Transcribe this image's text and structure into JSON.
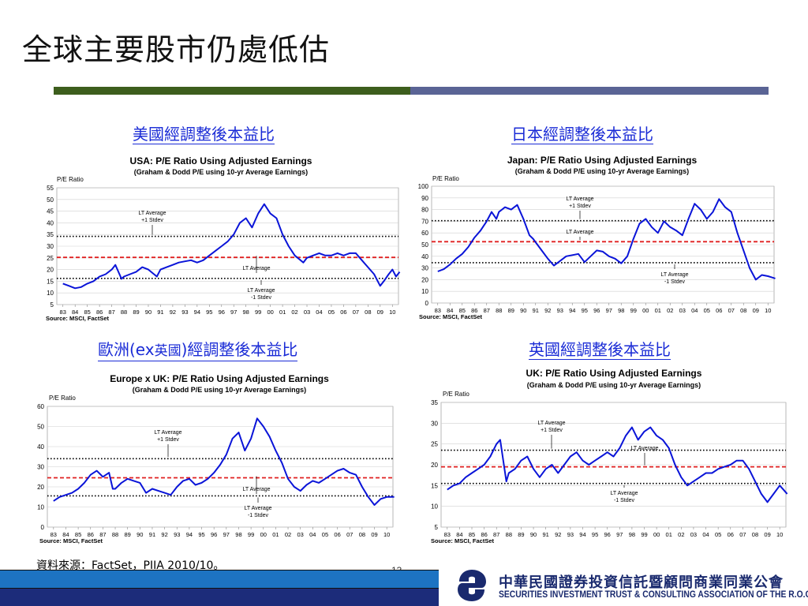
{
  "slide": {
    "title": "全球主要股市仍處低估",
    "source_note": "資料來源：FactSet，PIIA 2010/10。",
    "page_number": "13"
  },
  "footer": {
    "org_cn": "中華民國證券投資信託暨顧問商業同業公會",
    "org_en": "SECURITIES INVESTMENT TRUST & CONSULTING ASSOCIATION OF THE R.O.C.",
    "colors": {
      "bar_top": "#1d73c2",
      "bar_bottom": "#1c2c7a",
      "logo": "#1a2a6e"
    }
  },
  "colors": {
    "series": "#0a14d8",
    "average": "#e02020",
    "stdev": "#000000",
    "title_bar_green": "#3d5e1d",
    "title_bar_blue": "#5a6495",
    "section_title": "#1a2bd6"
  },
  "sections": {
    "usa": "美國經調整後本益比",
    "japan": "日本經調整後本益比",
    "europe_prefix": "歐洲",
    "europe_ex": "(ex",
    "europe_mid": "英國",
    "europe_suffix": ")經調整後本益比",
    "uk": "英國經調整後本益比"
  },
  "chart_data": [
    {
      "id": "usa",
      "type": "line",
      "title": "USA: P/E Ratio Using Adjusted Earnings",
      "subtitle": "(Graham & Dodd P/E using 10-yr Average Earnings)",
      "ylabel": "P/E Ratio",
      "ylim": [
        5,
        55
      ],
      "yticks": [
        5,
        10,
        15,
        20,
        25,
        30,
        35,
        40,
        45,
        50,
        55
      ],
      "xticks": [
        "83",
        "84",
        "85",
        "86",
        "87",
        "88",
        "89",
        "90",
        "91",
        "92",
        "93",
        "94",
        "95",
        "96",
        "97",
        "98",
        "99",
        "00",
        "01",
        "02",
        "03",
        "04",
        "05",
        "06",
        "07",
        "08",
        "09",
        "10"
      ],
      "source": "Source: MSCI, FactSet",
      "lt_average": 25.2,
      "plus_1_stdev": 34.2,
      "minus_1_stdev": 16.2,
      "annotations": {
        "plus": [
          "LT Average",
          "+1 Stdev"
        ],
        "avg": [
          "LT Average"
        ],
        "minus": [
          "LT Average",
          "-1 Stdev"
        ]
      },
      "points": [
        [
          1983,
          14
        ],
        [
          1983.5,
          13
        ],
        [
          1984,
          12
        ],
        [
          1984.5,
          12.5
        ],
        [
          1985,
          14
        ],
        [
          1985.5,
          15
        ],
        [
          1986,
          17
        ],
        [
          1986.5,
          18
        ],
        [
          1987,
          20
        ],
        [
          1987.3,
          22
        ],
        [
          1987.8,
          16
        ],
        [
          1988,
          17
        ],
        [
          1988.5,
          18
        ],
        [
          1989,
          19
        ],
        [
          1989.5,
          21
        ],
        [
          1990,
          20
        ],
        [
          1990.7,
          17
        ],
        [
          1991,
          20
        ],
        [
          1991.5,
          21
        ],
        [
          1992,
          22
        ],
        [
          1992.5,
          23
        ],
        [
          1993,
          23.5
        ],
        [
          1993.5,
          24
        ],
        [
          1994,
          23
        ],
        [
          1994.5,
          24
        ],
        [
          1995,
          26
        ],
        [
          1995.5,
          28
        ],
        [
          1996,
          30
        ],
        [
          1996.5,
          32
        ],
        [
          1997,
          35
        ],
        [
          1997.5,
          40
        ],
        [
          1998,
          42
        ],
        [
          1998.5,
          38
        ],
        [
          1999,
          44
        ],
        [
          1999.5,
          48
        ],
        [
          2000,
          44
        ],
        [
          2000.5,
          42
        ],
        [
          2001,
          35
        ],
        [
          2001.5,
          30
        ],
        [
          2002,
          26
        ],
        [
          2002.7,
          23
        ],
        [
          2003,
          25
        ],
        [
          2003.5,
          26
        ],
        [
          2004,
          27
        ],
        [
          2004.5,
          26
        ],
        [
          2005,
          26
        ],
        [
          2005.5,
          27
        ],
        [
          2006,
          26
        ],
        [
          2006.5,
          27
        ],
        [
          2007,
          27
        ],
        [
          2007.5,
          24
        ],
        [
          2008,
          21
        ],
        [
          2008.5,
          18
        ],
        [
          2009,
          13
        ],
        [
          2009.3,
          15
        ],
        [
          2009.7,
          18
        ],
        [
          2010,
          20
        ],
        [
          2010.3,
          17
        ],
        [
          2010.6,
          19
        ]
      ]
    },
    {
      "id": "japan",
      "type": "line",
      "title": "Japan: P/E Ratio Using Adjusted Earnings",
      "subtitle": "(Graham & Dodd P/E using 10-yr Average Earnings)",
      "ylabel": "P/E Ratio",
      "ylim": [
        0,
        100
      ],
      "yticks": [
        0,
        10,
        20,
        30,
        40,
        50,
        60,
        70,
        80,
        90,
        100
      ],
      "xticks": [
        "83",
        "84",
        "85",
        "86",
        "87",
        "88",
        "89",
        "90",
        "91",
        "92",
        "93",
        "94",
        "95",
        "96",
        "97",
        "98",
        "99",
        "00",
        "01",
        "02",
        "03",
        "04",
        "05",
        "06",
        "07",
        "08",
        "09",
        "10"
      ],
      "source": "Source: MSCI, FactSet",
      "lt_average": 52.5,
      "plus_1_stdev": 70.5,
      "minus_1_stdev": 34.5,
      "annotations": {
        "plus": [
          "LT Average",
          "+1 Stdev"
        ],
        "avg": [
          "LT Average"
        ],
        "minus": [
          "LT Average",
          "-1 Stdev"
        ]
      },
      "points": [
        [
          1983,
          27
        ],
        [
          1983.5,
          29
        ],
        [
          1984,
          33
        ],
        [
          1984.5,
          38
        ],
        [
          1985,
          42
        ],
        [
          1985.5,
          48
        ],
        [
          1986,
          56
        ],
        [
          1986.5,
          62
        ],
        [
          1987,
          70
        ],
        [
          1987.4,
          78
        ],
        [
          1987.8,
          72
        ],
        [
          1988,
          78
        ],
        [
          1988.5,
          82
        ],
        [
          1989,
          80
        ],
        [
          1989.5,
          84
        ],
        [
          1990,
          72
        ],
        [
          1990.5,
          58
        ],
        [
          1990.8,
          55
        ],
        [
          1991,
          52
        ],
        [
          1991.5,
          45
        ],
        [
          1992,
          38
        ],
        [
          1992.5,
          32
        ],
        [
          1993,
          36
        ],
        [
          1993.5,
          40
        ],
        [
          1994,
          41
        ],
        [
          1994.5,
          42
        ],
        [
          1995,
          35
        ],
        [
          1995.5,
          40
        ],
        [
          1996,
          45
        ],
        [
          1996.5,
          44
        ],
        [
          1997,
          40
        ],
        [
          1997.5,
          38
        ],
        [
          1998,
          34
        ],
        [
          1998.5,
          40
        ],
        [
          1999,
          55
        ],
        [
          1999.5,
          68
        ],
        [
          2000,
          72
        ],
        [
          2000.5,
          65
        ],
        [
          2001,
          60
        ],
        [
          2001.5,
          70
        ],
        [
          2002,
          65
        ],
        [
          2002.5,
          62
        ],
        [
          2003,
          58
        ],
        [
          2003.5,
          72
        ],
        [
          2004,
          85
        ],
        [
          2004.5,
          80
        ],
        [
          2005,
          72
        ],
        [
          2005.5,
          78
        ],
        [
          2006,
          89
        ],
        [
          2006.5,
          82
        ],
        [
          2007,
          78
        ],
        [
          2007.5,
          60
        ],
        [
          2008,
          45
        ],
        [
          2008.5,
          30
        ],
        [
          2009,
          20
        ],
        [
          2009.5,
          24
        ],
        [
          2010,
          23
        ],
        [
          2010.3,
          22
        ],
        [
          2010.6,
          21
        ]
      ]
    },
    {
      "id": "europe",
      "type": "line",
      "title": "Europe x UK: P/E Ratio Using Adjusted Earnings",
      "subtitle": "(Graham & Dodd P/E using 10-yr Average Earnings)",
      "ylabel": "P/E Ratio",
      "ylim": [
        0,
        60
      ],
      "yticks": [
        0,
        10,
        20,
        30,
        40,
        50,
        60
      ],
      "xticks": [
        "83",
        "84",
        "85",
        "86",
        "87",
        "88",
        "89",
        "90",
        "91",
        "92",
        "93",
        "94",
        "95",
        "96",
        "97",
        "98",
        "99",
        "00",
        "01",
        "02",
        "03",
        "04",
        "05",
        "06",
        "07",
        "08",
        "09",
        "10"
      ],
      "source": "Source: MSCI, FactSet",
      "lt_average": 24.5,
      "plus_1_stdev": 34,
      "minus_1_stdev": 15.5,
      "annotations": {
        "plus": [
          "LT Average",
          "+1 Stdev"
        ],
        "avg": [
          "LT Average"
        ],
        "minus": [
          "LT Average",
          "-1 Stdev"
        ]
      },
      "points": [
        [
          1983,
          13
        ],
        [
          1983.5,
          15
        ],
        [
          1984,
          16
        ],
        [
          1984.5,
          17
        ],
        [
          1985,
          19
        ],
        [
          1985.5,
          22
        ],
        [
          1986,
          26
        ],
        [
          1986.5,
          28
        ],
        [
          1987,
          25
        ],
        [
          1987.5,
          27
        ],
        [
          1987.8,
          19
        ],
        [
          1988,
          19
        ],
        [
          1988.5,
          22
        ],
        [
          1989,
          24
        ],
        [
          1989.5,
          23
        ],
        [
          1990,
          22
        ],
        [
          1990.5,
          17
        ],
        [
          1991,
          19
        ],
        [
          1991.5,
          18
        ],
        [
          1992,
          17
        ],
        [
          1992.5,
          16
        ],
        [
          1993,
          20
        ],
        [
          1993.5,
          23
        ],
        [
          1994,
          24
        ],
        [
          1994.5,
          21
        ],
        [
          1995,
          22
        ],
        [
          1995.5,
          24
        ],
        [
          1996,
          27
        ],
        [
          1996.5,
          31
        ],
        [
          1997,
          36
        ],
        [
          1997.5,
          44
        ],
        [
          1998,
          47
        ],
        [
          1998.5,
          38
        ],
        [
          1999,
          44
        ],
        [
          1999.5,
          54
        ],
        [
          2000,
          50
        ],
        [
          2000.5,
          45
        ],
        [
          2001,
          38
        ],
        [
          2001.5,
          32
        ],
        [
          2002,
          24
        ],
        [
          2002.5,
          20
        ],
        [
          2003,
          18
        ],
        [
          2003.5,
          21
        ],
        [
          2004,
          23
        ],
        [
          2004.5,
          22
        ],
        [
          2005,
          24
        ],
        [
          2005.5,
          26
        ],
        [
          2006,
          28
        ],
        [
          2006.5,
          29
        ],
        [
          2007,
          27
        ],
        [
          2007.5,
          26
        ],
        [
          2008,
          20
        ],
        [
          2008.5,
          15
        ],
        [
          2009,
          11
        ],
        [
          2009.5,
          14
        ],
        [
          2010,
          15
        ],
        [
          2010.6,
          15
        ]
      ]
    },
    {
      "id": "uk",
      "type": "line",
      "title": "UK: P/E Ratio Using Adjusted Earnings",
      "subtitle": "(Graham & Dodd P/E using 10-yr Average Earnings)",
      "ylabel": "P/E Ratio",
      "ylim": [
        5,
        35
      ],
      "yticks": [
        5,
        10,
        15,
        20,
        25,
        30,
        35
      ],
      "xticks": [
        "83",
        "84",
        "85",
        "86",
        "87",
        "88",
        "89",
        "90",
        "91",
        "92",
        "93",
        "94",
        "95",
        "96",
        "97",
        "98",
        "99",
        "00",
        "01",
        "02",
        "03",
        "04",
        "05",
        "06",
        "07",
        "08",
        "09",
        "10"
      ],
      "source": "Source: MSCI, FactSet",
      "lt_average": 19.5,
      "plus_1_stdev": 23.5,
      "minus_1_stdev": 15.5,
      "annotations": {
        "plus": [
          "LT Average",
          "+1 Stdev"
        ],
        "avg": [
          "LT Average"
        ],
        "minus": [
          "LT Average",
          "-1 Stdev"
        ]
      },
      "points": [
        [
          1983,
          14
        ],
        [
          1983.5,
          15
        ],
        [
          1984,
          15.5
        ],
        [
          1984.5,
          17
        ],
        [
          1985,
          18
        ],
        [
          1985.5,
          19
        ],
        [
          1986,
          20
        ],
        [
          1986.5,
          22
        ],
        [
          1987,
          25
        ],
        [
          1987.3,
          26
        ],
        [
          1987.8,
          16
        ],
        [
          1988,
          18
        ],
        [
          1988.5,
          19
        ],
        [
          1989,
          21
        ],
        [
          1989.5,
          22
        ],
        [
          1990,
          19
        ],
        [
          1990.5,
          17
        ],
        [
          1991,
          19
        ],
        [
          1991.5,
          20
        ],
        [
          1992,
          18
        ],
        [
          1992.5,
          20
        ],
        [
          1993,
          22
        ],
        [
          1993.5,
          23
        ],
        [
          1994,
          21
        ],
        [
          1994.5,
          20
        ],
        [
          1995,
          21
        ],
        [
          1995.5,
          22
        ],
        [
          1996,
          23
        ],
        [
          1996.5,
          22
        ],
        [
          1997,
          24
        ],
        [
          1997.5,
          27
        ],
        [
          1998,
          29
        ],
        [
          1998.5,
          26
        ],
        [
          1999,
          28
        ],
        [
          1999.5,
          29
        ],
        [
          2000,
          27
        ],
        [
          2000.5,
          26
        ],
        [
          2001,
          24
        ],
        [
          2001.5,
          20
        ],
        [
          2002,
          17
        ],
        [
          2002.5,
          15
        ],
        [
          2003,
          16
        ],
        [
          2003.5,
          17
        ],
        [
          2004,
          18
        ],
        [
          2004.5,
          18
        ],
        [
          2005,
          19
        ],
        [
          2005.5,
          19.5
        ],
        [
          2006,
          20
        ],
        [
          2006.5,
          21
        ],
        [
          2007,
          21
        ],
        [
          2007.5,
          19
        ],
        [
          2008,
          16
        ],
        [
          2008.5,
          13
        ],
        [
          2009,
          11
        ],
        [
          2009.5,
          13
        ],
        [
          2010,
          15
        ],
        [
          2010.3,
          14
        ],
        [
          2010.6,
          13
        ]
      ]
    }
  ]
}
